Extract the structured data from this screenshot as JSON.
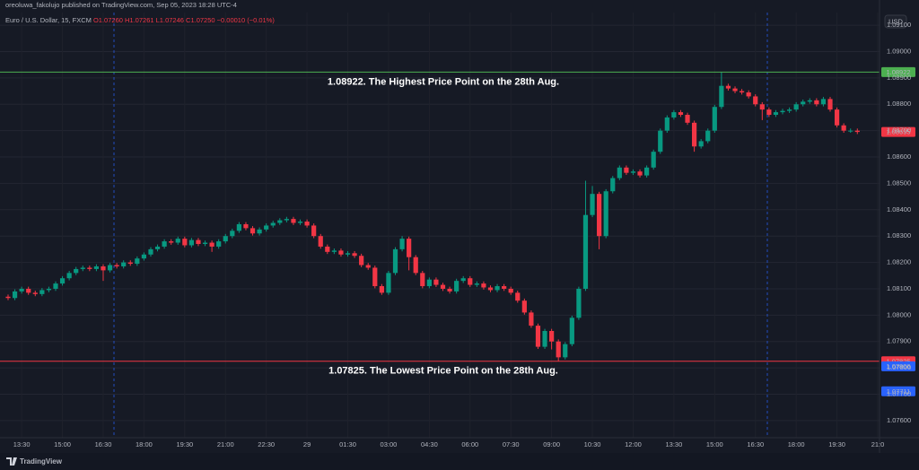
{
  "header": "oreoluwa_fakolujo published on TradingView.com, Sep 05, 2023 18:28 UTC-4",
  "footer": "TradingView",
  "chart_data": {
    "type": "candlestick",
    "legend_title": "Euro / U.S. Dollar, 15, FXCM",
    "legend_values": [
      "O1.07260",
      "H1.07261",
      "L1.07246",
      "C1.07250",
      "−0.00010 (−0.01%)"
    ],
    "currency": "USD",
    "up_color": "#089981",
    "down_color": "#f23645",
    "grid": true,
    "ylim": [
      1.07535,
      1.09148
    ],
    "yticks": [
      {
        "value": 1.076,
        "label": "1.07600"
      },
      {
        "value": 1.077,
        "label": "1.07700"
      },
      {
        "value": 1.078,
        "label": "1.07800"
      },
      {
        "value": 1.079,
        "label": "1.07900"
      },
      {
        "value": 1.08,
        "label": "1.08000"
      },
      {
        "value": 1.081,
        "label": "1.08100"
      },
      {
        "value": 1.082,
        "label": "1.08200"
      },
      {
        "value": 1.083,
        "label": "1.08300"
      },
      {
        "value": 1.084,
        "label": "1.08400"
      },
      {
        "value": 1.085,
        "label": "1.08500"
      },
      {
        "value": 1.086,
        "label": "1.08600"
      },
      {
        "value": 1.087,
        "label": "1.08700"
      },
      {
        "value": 1.088,
        "label": "1.08800"
      },
      {
        "value": 1.089,
        "label": "1.08900"
      },
      {
        "value": 1.09,
        "label": "1.09000"
      },
      {
        "value": 1.091,
        "label": "1.09100"
      }
    ],
    "hlines": [
      {
        "value": 1.08922,
        "text": "1.08922. The Highest Price Point on the 28th Aug.",
        "color": "#4caf50"
      },
      {
        "value": 1.07825,
        "text": "1.07825. The Lowest Price Point on the 28th Aug.",
        "color": "#f23645"
      }
    ],
    "price_labels": [
      {
        "value": 1.08695,
        "color": "#f23645"
      },
      {
        "value": 1.07806,
        "color": "#2962ff"
      },
      {
        "value": 1.07711,
        "color": "#2962ff"
      }
    ],
    "categories": [
      null,
      null,
      "13:30",
      null,
      null,
      null,
      null,
      null,
      "15:00",
      null,
      null,
      null,
      null,
      null,
      "16:30",
      null,
      null,
      null,
      null,
      null,
      "18:00",
      null,
      null,
      null,
      null,
      null,
      "19:30",
      null,
      null,
      null,
      null,
      null,
      "21:00",
      null,
      null,
      null,
      null,
      null,
      "22:30",
      null,
      null,
      null,
      null,
      null,
      "29",
      null,
      null,
      null,
      null,
      null,
      "01:30",
      null,
      null,
      null,
      null,
      null,
      "03:00",
      null,
      null,
      null,
      null,
      null,
      "04:30",
      null,
      null,
      null,
      null,
      null,
      "06:00",
      null,
      null,
      null,
      null,
      null,
      "07:30",
      null,
      null,
      null,
      null,
      null,
      "09:00",
      null,
      null,
      null,
      null,
      null,
      "10:30",
      null,
      null,
      null,
      null,
      null,
      "12:00",
      null,
      null,
      null,
      null,
      null,
      "13:30",
      null,
      null,
      null,
      null,
      null,
      "15:00",
      null,
      null,
      null,
      null,
      null,
      "16:30",
      null,
      null,
      null,
      null,
      null,
      "18:00",
      null,
      null,
      null,
      null,
      null,
      "19:30",
      null,
      null,
      null,
      null,
      null,
      "21:0"
    ],
    "ohlc": [
      [
        1.0807,
        1.08078,
        1.08057,
        1.08065
      ],
      [
        1.08065,
        1.08098,
        1.08057,
        1.0809
      ],
      [
        1.0809,
        1.08108,
        1.08082,
        1.081
      ],
      [
        1.081,
        1.08108,
        1.08077,
        1.08085
      ],
      [
        1.08085,
        1.08093,
        1.08072,
        1.0808
      ],
      [
        1.0808,
        1.08103,
        1.08072,
        1.08095
      ],
      [
        1.08095,
        1.08108,
        1.08087,
        1.081
      ],
      [
        1.081,
        1.08128,
        1.08092,
        1.0812
      ],
      [
        1.0812,
        1.08148,
        1.08112,
        1.0814
      ],
      [
        1.0814,
        1.08168,
        1.08132,
        1.0816
      ],
      [
        1.0816,
        1.08183,
        1.08152,
        1.08175
      ],
      [
        1.08175,
        1.08188,
        1.08167,
        1.0818
      ],
      [
        1.0818,
        1.08188,
        1.08167,
        1.08175
      ],
      [
        1.08175,
        1.08193,
        1.08167,
        1.08185
      ],
      [
        1.08185,
        1.08193,
        1.0813,
        1.0817
      ],
      [
        1.0817,
        1.08198,
        1.08162,
        1.0819
      ],
      [
        1.0819,
        1.08198,
        1.08177,
        1.08185
      ],
      [
        1.08185,
        1.08208,
        1.08177,
        1.082
      ],
      [
        1.082,
        1.08208,
        1.08187,
        1.08195
      ],
      [
        1.08195,
        1.08223,
        1.08187,
        1.08215
      ],
      [
        1.08215,
        1.08238,
        1.08207,
        1.0823
      ],
      [
        1.0823,
        1.08258,
        1.08222,
        1.0825
      ],
      [
        1.0825,
        1.08268,
        1.08242,
        1.0826
      ],
      [
        1.0826,
        1.08288,
        1.08252,
        1.0828
      ],
      [
        1.0828,
        1.08288,
        1.08267,
        1.08275
      ],
      [
        1.08275,
        1.08298,
        1.08267,
        1.0829
      ],
      [
        1.0829,
        1.08298,
        1.08257,
        1.08265
      ],
      [
        1.08265,
        1.08293,
        1.08257,
        1.08285
      ],
      [
        1.08285,
        1.08293,
        1.08262,
        1.0827
      ],
      [
        1.0827,
        1.08283,
        1.08262,
        1.08275
      ],
      [
        1.08275,
        1.08283,
        1.0824,
        1.0826
      ],
      [
        1.0826,
        1.08288,
        1.08252,
        1.0828
      ],
      [
        1.0828,
        1.08308,
        1.08272,
        1.083
      ],
      [
        1.083,
        1.08328,
        1.08292,
        1.0832
      ],
      [
        1.0832,
        1.08353,
        1.08312,
        1.08345
      ],
      [
        1.08345,
        1.08353,
        1.08322,
        1.0833
      ],
      [
        1.0833,
        1.08338,
        1.08302,
        1.0831
      ],
      [
        1.0831,
        1.08333,
        1.08302,
        1.08325
      ],
      [
        1.08325,
        1.08348,
        1.08317,
        1.0834
      ],
      [
        1.0834,
        1.08358,
        1.08332,
        1.0835
      ],
      [
        1.0835,
        1.08368,
        1.08342,
        1.0836
      ],
      [
        1.0836,
        1.08373,
        1.08352,
        1.08365
      ],
      [
        1.08365,
        1.08373,
        1.08342,
        1.0835
      ],
      [
        1.0835,
        1.08363,
        1.08342,
        1.08355
      ],
      [
        1.08355,
        1.08363,
        1.08332,
        1.0834
      ],
      [
        1.0834,
        1.08348,
        1.08292,
        1.083
      ],
      [
        1.083,
        1.08308,
        1.08252,
        1.0826
      ],
      [
        1.0826,
        1.08268,
        1.08232,
        1.0824
      ],
      [
        1.0824,
        1.08253,
        1.08232,
        1.08245
      ],
      [
        1.08245,
        1.08253,
        1.08222,
        1.0823
      ],
      [
        1.0823,
        1.08243,
        1.08222,
        1.08235
      ],
      [
        1.08235,
        1.08243,
        1.08217,
        1.08225
      ],
      [
        1.08225,
        1.08233,
        1.08182,
        1.0819
      ],
      [
        1.0819,
        1.08198,
        1.08172,
        1.0818
      ],
      [
        1.0818,
        1.08188,
        1.08102,
        1.0811
      ],
      [
        1.0811,
        1.08118,
        1.08077,
        1.08085
      ],
      [
        1.08085,
        1.08168,
        1.08077,
        1.0816
      ],
      [
        1.0816,
        1.08258,
        1.08152,
        1.0825
      ],
      [
        1.0825,
        1.083,
        1.08242,
        1.0829
      ],
      [
        1.0829,
        1.08298,
        1.0817,
        1.0822
      ],
      [
        1.0822,
        1.08228,
        1.08152,
        1.0816
      ],
      [
        1.0816,
        1.08168,
        1.08102,
        1.0811
      ],
      [
        1.0811,
        1.08143,
        1.08102,
        1.08135
      ],
      [
        1.08135,
        1.08143,
        1.08107,
        1.08115
      ],
      [
        1.08115,
        1.08123,
        1.08092,
        1.081
      ],
      [
        1.081,
        1.08108,
        1.08082,
        1.0809
      ],
      [
        1.0809,
        1.08138,
        1.08082,
        1.0813
      ],
      [
        1.0813,
        1.08148,
        1.08122,
        1.0814
      ],
      [
        1.0814,
        1.08148,
        1.08107,
        1.08115
      ],
      [
        1.08115,
        1.08128,
        1.08107,
        1.0812
      ],
      [
        1.0812,
        1.08128,
        1.08097,
        1.08105
      ],
      [
        1.08105,
        1.08113,
        1.08087,
        1.08095
      ],
      [
        1.08095,
        1.08118,
        1.08087,
        1.0811
      ],
      [
        1.0811,
        1.08118,
        1.08092,
        1.081
      ],
      [
        1.081,
        1.08108,
        1.08077,
        1.08085
      ],
      [
        1.08085,
        1.08093,
        1.08047,
        1.08055
      ],
      [
        1.08055,
        1.08063,
        1.08002,
        1.0801
      ],
      [
        1.0801,
        1.08018,
        1.07952,
        1.0796
      ],
      [
        1.0796,
        1.07968,
        1.07872,
        1.0788
      ],
      [
        1.0788,
        1.07948,
        1.07872,
        1.0794
      ],
      [
        1.0794,
        1.07948,
        1.0787,
        1.079
      ],
      [
        1.079,
        1.07908,
        1.07825,
        1.0784
      ],
      [
        1.0784,
        1.07898,
        1.07832,
        1.0789
      ],
      [
        1.0789,
        1.07998,
        1.07882,
        1.0799
      ],
      [
        1.0799,
        1.08108,
        1.07982,
        1.081
      ],
      [
        1.081,
        1.0851,
        1.08092,
        1.0838
      ],
      [
        1.0838,
        1.0849,
        1.08372,
        1.0846
      ],
      [
        1.0846,
        1.08468,
        1.0825,
        1.083
      ],
      [
        1.083,
        1.08478,
        1.08292,
        1.0847
      ],
      [
        1.0847,
        1.08528,
        1.08462,
        1.0852
      ],
      [
        1.0852,
        1.08568,
        1.08512,
        1.0856
      ],
      [
        1.0856,
        1.08568,
        1.08532,
        1.0854
      ],
      [
        1.0854,
        1.08553,
        1.08532,
        1.08545
      ],
      [
        1.08545,
        1.08553,
        1.08522,
        1.0853
      ],
      [
        1.0853,
        1.08568,
        1.08522,
        1.0856
      ],
      [
        1.0856,
        1.08628,
        1.08552,
        1.0862
      ],
      [
        1.0862,
        1.08708,
        1.08612,
        1.087
      ],
      [
        1.087,
        1.08758,
        1.08692,
        1.0875
      ],
      [
        1.0875,
        1.08778,
        1.08742,
        1.0877
      ],
      [
        1.0877,
        1.08778,
        1.08752,
        1.0876
      ],
      [
        1.0876,
        1.08768,
        1.08722,
        1.0873
      ],
      [
        1.0873,
        1.08738,
        1.0862,
        1.0864
      ],
      [
        1.0864,
        1.08668,
        1.08632,
        1.0866
      ],
      [
        1.0866,
        1.08708,
        1.08652,
        1.087
      ],
      [
        1.087,
        1.08798,
        1.08692,
        1.0879
      ],
      [
        1.0879,
        1.08922,
        1.08782,
        1.0887
      ],
      [
        1.0887,
        1.08878,
        1.08852,
        1.0886
      ],
      [
        1.0886,
        1.08868,
        1.08842,
        1.0885
      ],
      [
        1.0885,
        1.08858,
        1.08837,
        1.08845
      ],
      [
        1.08845,
        1.08853,
        1.08822,
        1.0883
      ],
      [
        1.0883,
        1.08838,
        1.08792,
        1.088
      ],
      [
        1.088,
        1.08808,
        1.0874,
        1.0878
      ],
      [
        1.0878,
        1.08788,
        1.08752,
        1.0876
      ],
      [
        1.0876,
        1.08778,
        1.08752,
        1.0877
      ],
      [
        1.0877,
        1.08783,
        1.08762,
        1.08775
      ],
      [
        1.08775,
        1.08788,
        1.08767,
        1.0878
      ],
      [
        1.0878,
        1.08808,
        1.08772,
        1.088
      ],
      [
        1.088,
        1.08818,
        1.08792,
        1.0881
      ],
      [
        1.0881,
        1.08823,
        1.08802,
        1.08815
      ],
      [
        1.08815,
        1.08823,
        1.08792,
        1.088
      ],
      [
        1.088,
        1.08828,
        1.08792,
        1.0882
      ],
      [
        1.0882,
        1.08828,
        1.08772,
        1.0878
      ],
      [
        1.0878,
        1.08788,
        1.08712,
        1.0872
      ],
      [
        1.0872,
        1.08728,
        1.08692,
        1.087
      ],
      [
        1.087,
        1.08708,
        1.08692,
        1.087
      ],
      [
        1.087,
        1.08708,
        1.08687,
        1.08695
      ],
      null,
      null,
      null
    ]
  }
}
